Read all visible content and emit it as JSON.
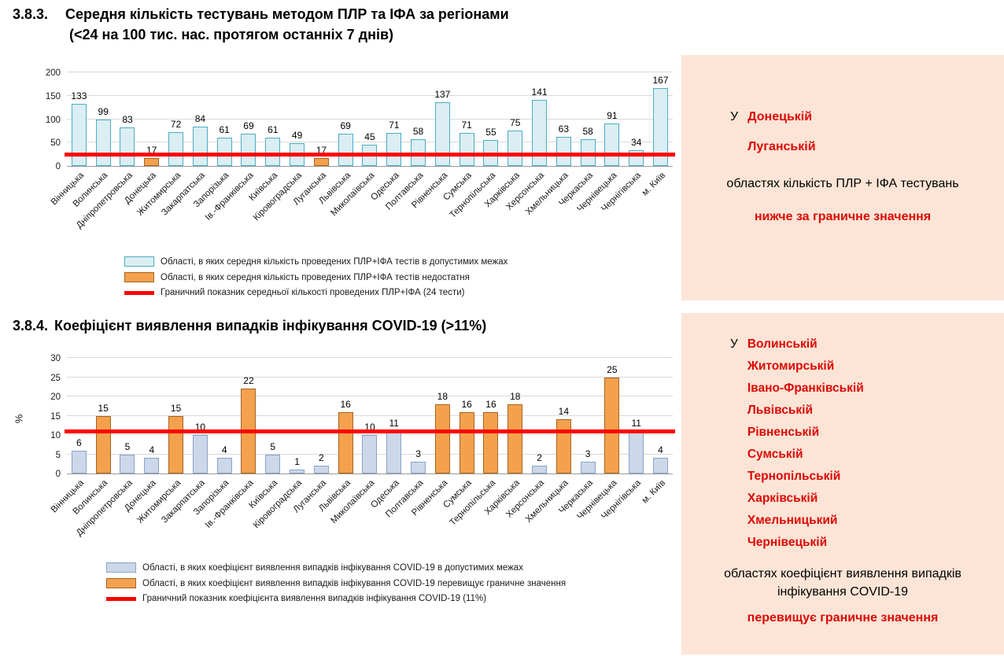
{
  "section1": {
    "number": "3.8.3.",
    "title": "Середня кількість тестувань методом ПЛР та ІФА за регіонами",
    "subtitle": "(<24 на 100 тис. нас. протягом останніх 7 днів)"
  },
  "section2": {
    "number": "3.8.4.",
    "title": "Коефіцієнт виявлення випадків інфікування COVID-19 (>11%)"
  },
  "chart_data": [
    {
      "type": "bar",
      "categories": [
        "Вінницька",
        "Волинська",
        "Дніпропетровська",
        "Донецька",
        "Житомирська",
        "Закарпатська",
        "Запорізька",
        "Ів.-Франківська",
        "Київська",
        "Кіровоградська",
        "Луганська",
        "Львівська",
        "Миколаївська",
        "Одеська",
        "Полтавська",
        "Рівненська",
        "Сумська",
        "Тернопільська",
        "Харківська",
        "Херсонська",
        "Хмельницька",
        "Черкаська",
        "Чернівецька",
        "Чернігівська",
        "м. Київ"
      ],
      "values": [
        133,
        99,
        83,
        17,
        72,
        84,
        61,
        69,
        61,
        49,
        17,
        69,
        45,
        71,
        58,
        137,
        71,
        55,
        75,
        141,
        63,
        58,
        91,
        34,
        167
      ],
      "threshold": 24,
      "bad_when": "below",
      "ylim": [
        0,
        200
      ],
      "yticks": [
        0,
        50,
        100,
        150,
        200
      ],
      "ylabel": "",
      "grid": true,
      "legend_position": "bottom",
      "legend": [
        {
          "type": "bar-ok",
          "label": "Області, в яких середня кількість проведених ПЛР+ІФА тестів в допустимих межах"
        },
        {
          "type": "bar-bad",
          "label": "Області, в яких середня кількість проведених ПЛР+ІФА тестів недостатня"
        },
        {
          "type": "line",
          "label": "Граничний показник середньої кількості проведених ПЛР+ІФА (24 тести)"
        }
      ],
      "colors": {
        "ok_fill": "#daeef3",
        "ok_border": "#4bacc6",
        "bad_fill": "#f4a14e",
        "bad_border": "#a6641f",
        "line": "#ff0000"
      }
    },
    {
      "type": "bar",
      "categories": [
        "Вінницька",
        "Волинська",
        "Дніпропетровська",
        "Донецька",
        "Житомирська",
        "Закарпатська",
        "Запорізька",
        "Ів.-Франківська",
        "Київська",
        "Кіровоградська",
        "Луганська",
        "Львівська",
        "Миколаївська",
        "Одеська",
        "Полтавська",
        "Рівненська",
        "Сумська",
        "Тернопільська",
        "Харківська",
        "Херсонська",
        "Хмельницька",
        "Черкаська",
        "Чернівецька",
        "Чернігівська",
        "м. Київ"
      ],
      "values": [
        6,
        15,
        5,
        4,
        15,
        10,
        4,
        22,
        5,
        1,
        2,
        16,
        10,
        11,
        3,
        18,
        16,
        16,
        18,
        2,
        14,
        3,
        25,
        11,
        4
      ],
      "threshold": 11,
      "bad_when": "above",
      "ylim": [
        0,
        30
      ],
      "yticks": [
        0,
        5,
        10,
        15,
        20,
        25,
        30
      ],
      "ylabel": "%",
      "grid": true,
      "legend_position": "bottom",
      "legend": [
        {
          "type": "bar-ok",
          "label": "Області, в яких коефіцієнт виявлення випадків інфікування COVID-19 в допустимих межах"
        },
        {
          "type": "bar-bad",
          "label": "Області, в яких коефіцієнт виявлення випадків інфікування COVID-19 перевищує граничне значення"
        },
        {
          "type": "line",
          "label": "Граничний показник коефіцієнта виявлення випадків інфікування COVID-19 (11%)"
        }
      ],
      "colors": {
        "ok_fill": "#ccd7ea",
        "ok_border": "#8aa3c8",
        "bad_fill": "#f4a14e",
        "bad_border": "#a6641f",
        "line": "#ff0000"
      }
    }
  ],
  "panels": [
    {
      "bg": "#fce5d6",
      "accent": "#dd0806",
      "prefix": "У",
      "regions": [
        "Донецькій",
        "Луганській"
      ],
      "body": "областях кількість ПЛР + ІФА тестувань",
      "conclusion": "нижче за граничне значення"
    },
    {
      "bg": "#fce5d6",
      "accent": "#dd0806",
      "prefix": "У",
      "regions": [
        "Волинській",
        "Житомирській",
        "Івано-Франківській",
        "Львівській",
        "Рівненській",
        "Сумській",
        "Тернопільській",
        "Харківській",
        "Хмельницький",
        "Чернівецькій"
      ],
      "body": "областях коефіцієнт виявлення випадків інфікування COVID-19",
      "conclusion": "перевищує граничне значення"
    }
  ]
}
